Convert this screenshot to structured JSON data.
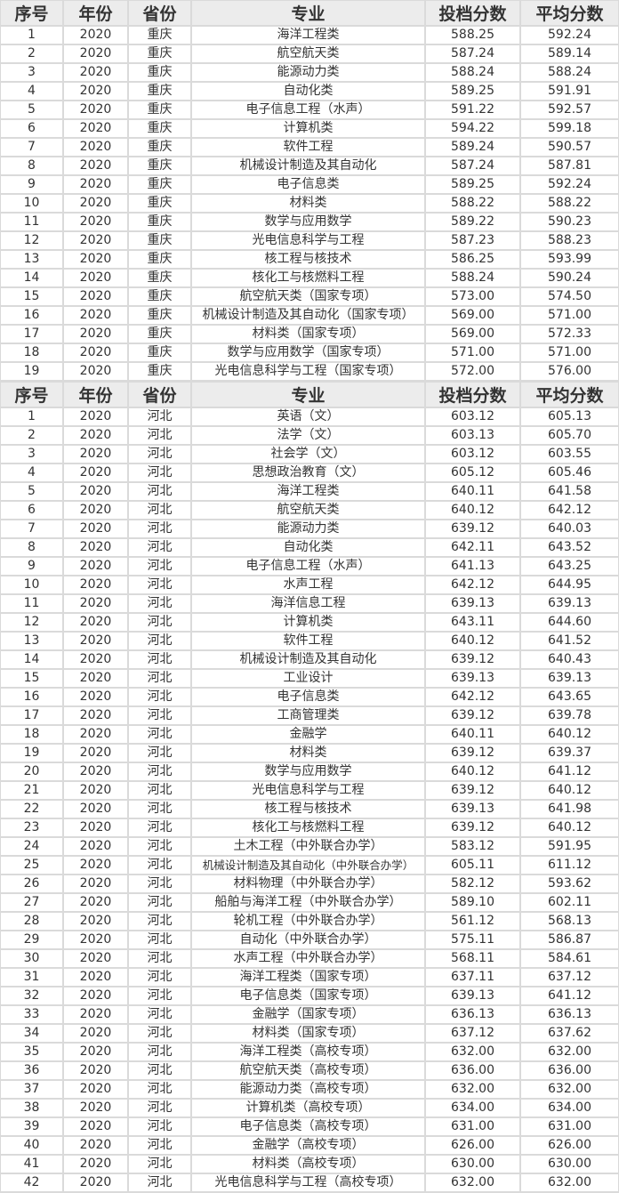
{
  "headers": [
    "序号",
    "年份",
    "省份",
    "专业",
    "投档分数",
    "平均分数"
  ],
  "tables": [
    {
      "province": "重庆",
      "rows": [
        [
          "1",
          "2020",
          "重庆",
          "海洋工程类",
          "588.25",
          "592.24"
        ],
        [
          "2",
          "2020",
          "重庆",
          "航空航天类",
          "587.24",
          "589.14"
        ],
        [
          "3",
          "2020",
          "重庆",
          "能源动力类",
          "588.24",
          "588.24"
        ],
        [
          "4",
          "2020",
          "重庆",
          "自动化类",
          "589.25",
          "591.91"
        ],
        [
          "5",
          "2020",
          "重庆",
          "电子信息工程（水声）",
          "591.22",
          "592.57"
        ],
        [
          "6",
          "2020",
          "重庆",
          "计算机类",
          "594.22",
          "599.18"
        ],
        [
          "7",
          "2020",
          "重庆",
          "软件工程",
          "589.24",
          "590.57"
        ],
        [
          "8",
          "2020",
          "重庆",
          "机械设计制造及其自动化",
          "587.24",
          "587.81"
        ],
        [
          "9",
          "2020",
          "重庆",
          "电子信息类",
          "589.25",
          "592.24"
        ],
        [
          "10",
          "2020",
          "重庆",
          "材料类",
          "588.22",
          "588.22"
        ],
        [
          "11",
          "2020",
          "重庆",
          "数学与应用数学",
          "589.22",
          "590.23"
        ],
        [
          "12",
          "2020",
          "重庆",
          "光电信息科学与工程",
          "587.23",
          "588.23"
        ],
        [
          "13",
          "2020",
          "重庆",
          "核工程与核技术",
          "586.25",
          "593.99"
        ],
        [
          "14",
          "2020",
          "重庆",
          "核化工与核燃料工程",
          "588.24",
          "590.24"
        ],
        [
          "15",
          "2020",
          "重庆",
          "航空航天类（国家专项）",
          "573.00",
          "574.50"
        ],
        [
          "16",
          "2020",
          "重庆",
          "机械设计制造及其自动化（国家专项）",
          "569.00",
          "571.00"
        ],
        [
          "17",
          "2020",
          "重庆",
          "材料类（国家专项）",
          "569.00",
          "572.33"
        ],
        [
          "18",
          "2020",
          "重庆",
          "数学与应用数学（国家专项）",
          "571.00",
          "571.00"
        ],
        [
          "19",
          "2020",
          "重庆",
          "光电信息科学与工程（国家专项）",
          "572.00",
          "576.00"
        ]
      ]
    },
    {
      "province": "河北",
      "rows": [
        [
          "1",
          "2020",
          "河北",
          "英语（文）",
          "603.12",
          "605.13"
        ],
        [
          "2",
          "2020",
          "河北",
          "法学（文）",
          "603.13",
          "605.70"
        ],
        [
          "3",
          "2020",
          "河北",
          "社会学（文）",
          "603.12",
          "603.55"
        ],
        [
          "4",
          "2020",
          "河北",
          "思想政治教育（文）",
          "605.12",
          "605.46"
        ],
        [
          "5",
          "2020",
          "河北",
          "海洋工程类",
          "640.11",
          "641.58"
        ],
        [
          "6",
          "2020",
          "河北",
          "航空航天类",
          "640.12",
          "642.12"
        ],
        [
          "7",
          "2020",
          "河北",
          "能源动力类",
          "639.12",
          "640.03"
        ],
        [
          "8",
          "2020",
          "河北",
          "自动化类",
          "642.11",
          "643.52"
        ],
        [
          "9",
          "2020",
          "河北",
          "电子信息工程（水声）",
          "641.13",
          "643.25"
        ],
        [
          "10",
          "2020",
          "河北",
          "水声工程",
          "642.12",
          "644.95"
        ],
        [
          "11",
          "2020",
          "河北",
          "海洋信息工程",
          "639.13",
          "639.13"
        ],
        [
          "12",
          "2020",
          "河北",
          "计算机类",
          "643.11",
          "644.60"
        ],
        [
          "13",
          "2020",
          "河北",
          "软件工程",
          "640.12",
          "641.52"
        ],
        [
          "14",
          "2020",
          "河北",
          "机械设计制造及其自动化",
          "639.12",
          "640.43"
        ],
        [
          "15",
          "2020",
          "河北",
          "工业设计",
          "639.13",
          "639.13"
        ],
        [
          "16",
          "2020",
          "河北",
          "电子信息类",
          "642.12",
          "643.65"
        ],
        [
          "17",
          "2020",
          "河北",
          "工商管理类",
          "639.12",
          "639.78"
        ],
        [
          "18",
          "2020",
          "河北",
          "金融学",
          "640.11",
          "640.12"
        ],
        [
          "19",
          "2020",
          "河北",
          "材料类",
          "639.12",
          "639.37"
        ],
        [
          "20",
          "2020",
          "河北",
          "数学与应用数学",
          "640.12",
          "641.12"
        ],
        [
          "21",
          "2020",
          "河北",
          "光电信息科学与工程",
          "639.12",
          "640.12"
        ],
        [
          "22",
          "2020",
          "河北",
          "核工程与核技术",
          "639.13",
          "641.98"
        ],
        [
          "23",
          "2020",
          "河北",
          "核化工与核燃料工程",
          "639.12",
          "640.12"
        ],
        [
          "24",
          "2020",
          "河北",
          "土木工程（中外联合办学）",
          "583.12",
          "591.95"
        ],
        [
          "25",
          "2020",
          "河北",
          "机械设计制造及其自动化（中外联合办学）",
          "605.11",
          "611.12"
        ],
        [
          "26",
          "2020",
          "河北",
          "材料物理（中外联合办学）",
          "582.12",
          "593.62"
        ],
        [
          "27",
          "2020",
          "河北",
          "船舶与海洋工程（中外联合办学）",
          "589.10",
          "602.11"
        ],
        [
          "28",
          "2020",
          "河北",
          "轮机工程（中外联合办学）",
          "561.12",
          "568.13"
        ],
        [
          "29",
          "2020",
          "河北",
          "自动化（中外联合办学）",
          "575.11",
          "586.87"
        ],
        [
          "30",
          "2020",
          "河北",
          "水声工程（中外联合办学）",
          "568.11",
          "584.61"
        ],
        [
          "31",
          "2020",
          "河北",
          "海洋工程类（国家专项）",
          "637.11",
          "637.12"
        ],
        [
          "32",
          "2020",
          "河北",
          "电子信息类（国家专项）",
          "639.13",
          "641.12"
        ],
        [
          "33",
          "2020",
          "河北",
          "金融学（国家专项）",
          "636.13",
          "636.13"
        ],
        [
          "34",
          "2020",
          "河北",
          "材料类（国家专项）",
          "637.12",
          "637.62"
        ],
        [
          "35",
          "2020",
          "河北",
          "海洋工程类（高校专项）",
          "632.00",
          "632.00"
        ],
        [
          "36",
          "2020",
          "河北",
          "航空航天类（高校专项）",
          "636.00",
          "636.00"
        ],
        [
          "37",
          "2020",
          "河北",
          "能源动力类（高校专项）",
          "632.00",
          "632.00"
        ],
        [
          "38",
          "2020",
          "河北",
          "计算机类（高校专项）",
          "634.00",
          "634.00"
        ],
        [
          "39",
          "2020",
          "河北",
          "电子信息类（高校专项）",
          "631.00",
          "631.00"
        ],
        [
          "40",
          "2020",
          "河北",
          "金融学（高校专项）",
          "626.00",
          "626.00"
        ],
        [
          "41",
          "2020",
          "河北",
          "材料类（高校专项）",
          "630.00",
          "630.00"
        ],
        [
          "42",
          "2020",
          "河北",
          "光电信息科学与工程（高校专项）",
          "632.00",
          "632.00"
        ]
      ]
    }
  ]
}
